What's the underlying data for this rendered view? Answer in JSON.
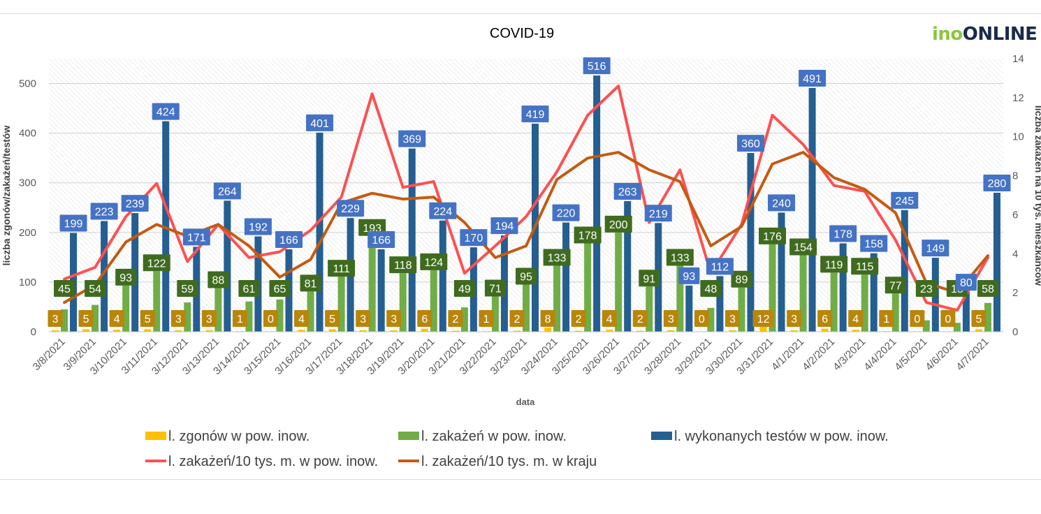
{
  "logo": {
    "part1": "ino",
    "part2": "ONLINE"
  },
  "chart_data": {
    "type": "bar+line",
    "title": "COVID-19",
    "xlabel": "data",
    "ylabel_left": "liczba zgonów/zakażeń/testów",
    "ylabel_right": "liczba zakażeń na 10 tys. mieszkańców",
    "ylim_left": [
      0,
      550
    ],
    "ylim_right": [
      0,
      14
    ],
    "yticks_left": [
      "0",
      "100",
      "200",
      "300",
      "400",
      "500"
    ],
    "yticks_right": [
      "0",
      "2",
      "4",
      "6",
      "8",
      "10",
      "12",
      "14"
    ],
    "categories": [
      "3/8/2021",
      "3/9/2021",
      "3/10/2021",
      "3/11/2021",
      "3/12/2021",
      "3/13/2021",
      "3/14/2021",
      "3/15/2021",
      "3/16/2021",
      "3/17/2021",
      "3/18/2021",
      "3/19/2021",
      "3/20/2021",
      "3/21/2021",
      "3/22/2021",
      "3/23/2021",
      "3/24/2021",
      "3/25/2021",
      "3/26/2021",
      "3/27/2021",
      "3/28/2021",
      "3/29/2021",
      "3/30/2021",
      "3/31/2021",
      "4/1/2021",
      "4/2/2021",
      "4/3/2021",
      "4/4/2021",
      "4/5/2021",
      "4/6/2021",
      "4/7/2021"
    ],
    "series": [
      {
        "name": "l. zgonów w pow. inow.",
        "kind": "bar",
        "axis": "left",
        "color": "#ffc000",
        "label_bg": "#b8860b",
        "values": [
          3,
          5,
          4,
          5,
          3,
          3,
          1,
          0,
          4,
          5,
          3,
          3,
          6,
          2,
          1,
          2,
          8,
          2,
          4,
          2,
          3,
          0,
          3,
          12,
          3,
          6,
          4,
          1,
          0,
          0,
          5
        ]
      },
      {
        "name": "l. zakażeń w pow. inow.",
        "kind": "bar",
        "axis": "left",
        "color": "#70ad47",
        "label_bg": "#3f6b1f",
        "values": [
          45,
          54,
          93,
          122,
          59,
          88,
          61,
          65,
          81,
          111,
          193,
          118,
          124,
          49,
          71,
          95,
          133,
          178,
          200,
          91,
          133,
          48,
          89,
          176,
          154,
          119,
          115,
          77,
          23,
          18,
          58
        ]
      },
      {
        "name": "l. wykonanych testów w pow. inow.",
        "kind": "bar",
        "axis": "left",
        "color": "#255e91",
        "label_bg": "#4472c4",
        "values": [
          199,
          223,
          239,
          424,
          171,
          264,
          192,
          166,
          401,
          229,
          166,
          369,
          224,
          170,
          194,
          419,
          220,
          516,
          263,
          219,
          93,
          112,
          360,
          240,
          491,
          178,
          158,
          245,
          149,
          80,
          280
        ]
      },
      {
        "name": "l. zakażeń/10 tys. m. w pow. inow.",
        "kind": "line",
        "axis": "right",
        "color": "#ff5050",
        "values": [
          2.7,
          3.3,
          5.9,
          7.6,
          3.6,
          5.5,
          3.8,
          4.1,
          5.2,
          6.9,
          12.2,
          7.4,
          7.7,
          3.0,
          4.4,
          5.9,
          8.2,
          11.1,
          12.6,
          5.6,
          8.3,
          3.0,
          5.5,
          11.1,
          9.6,
          7.5,
          7.2,
          4.7,
          1.5,
          1.1,
          3.8
        ]
      },
      {
        "name": "l. zakażeń/10 tys. m. w kraju",
        "kind": "line",
        "axis": "right",
        "color": "#c55a11",
        "values": [
          1.5,
          2.4,
          4.6,
          5.5,
          4.9,
          5.5,
          4.4,
          2.8,
          3.7,
          6.6,
          7.1,
          6.8,
          6.9,
          5.6,
          3.8,
          4.4,
          7.8,
          8.9,
          9.2,
          8.3,
          7.7,
          4.4,
          5.4,
          8.6,
          9.2,
          7.9,
          7.3,
          6.1,
          2.5,
          2.0,
          3.9
        ]
      }
    ],
    "legend_position": "bottom"
  }
}
